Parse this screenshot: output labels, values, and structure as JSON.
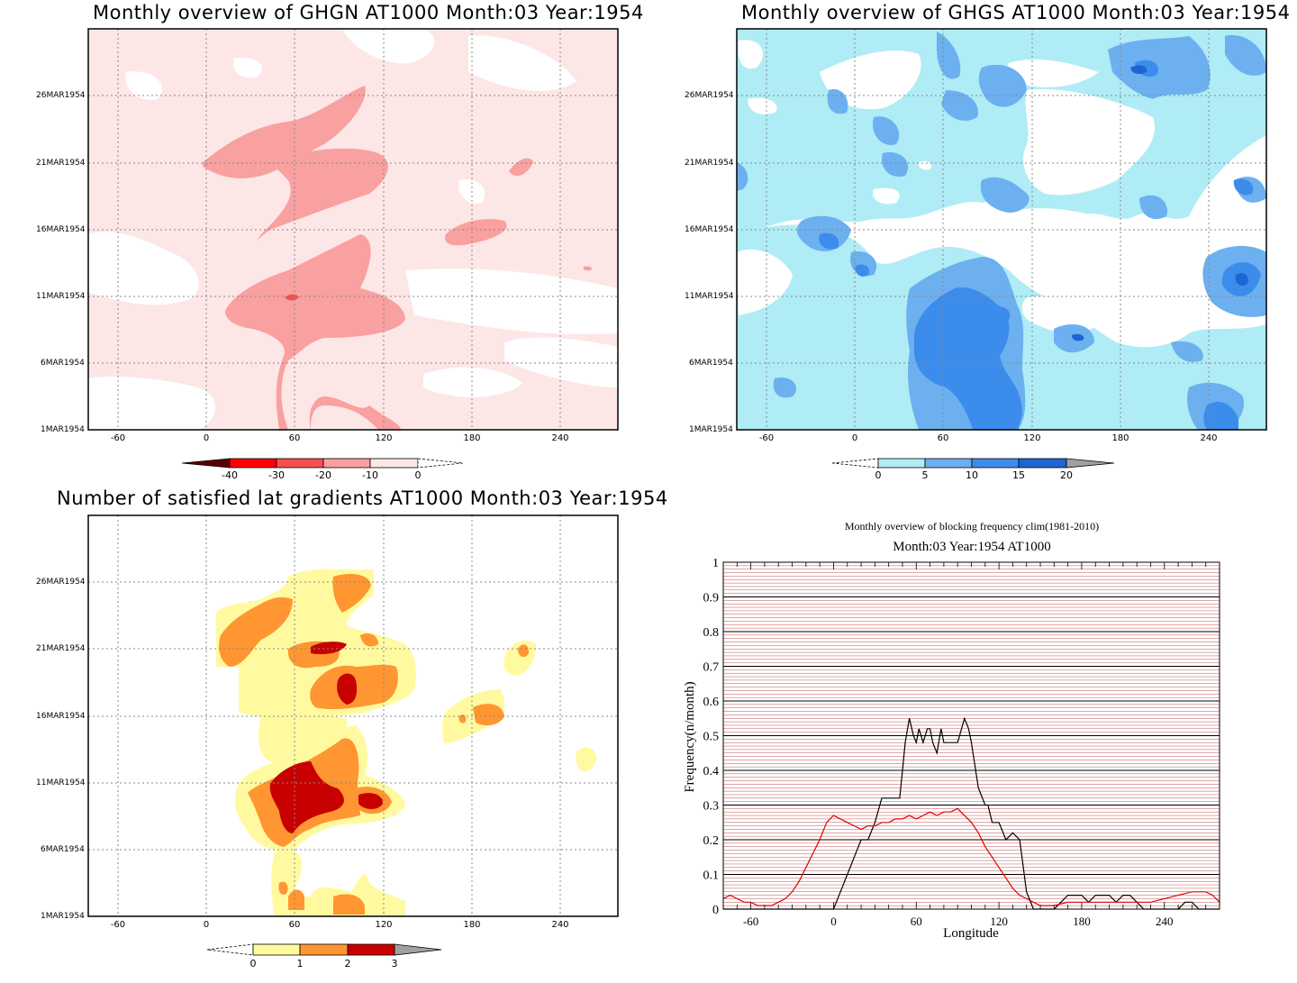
{
  "panels": {
    "ghgn": {
      "title": "Monthly overview of GHGN AT1000 Month:03 Year:1954",
      "colorbar_ticks": [
        "-40",
        "-30",
        "-20",
        "-10",
        "0"
      ],
      "colors": [
        "#5a0000",
        "#ff0000",
        "#f45050",
        "#f9a0a0",
        "#fde6e6",
        "#ffffff"
      ]
    },
    "ghgs": {
      "title": "Monthly overview of GHGS AT1000 Month:03 Year:1954",
      "colorbar_ticks": [
        "0",
        "5",
        "10",
        "15",
        "20"
      ],
      "colors": [
        "#ffffff",
        "#b0ecf5",
        "#6cb0f0",
        "#3c8cec",
        "#1e64d2",
        "#a0a0a0"
      ]
    },
    "lat": {
      "title": "Number of satisfied lat gradients AT1000 Month:03 Year:1954",
      "colorbar_ticks": [
        "0",
        "1",
        "2",
        "3"
      ],
      "colors": [
        "#ffffff",
        "#fffaa0",
        "#ff9632",
        "#c80000",
        "#a0a0a0"
      ]
    }
  },
  "date_ticks": [
    "26MAR1954",
    "21MAR1954",
    "16MAR1954",
    "11MAR1954",
    "6MAR1954",
    "1MAR1954"
  ],
  "lon_ticks": [
    "-60",
    "0",
    "60",
    "120",
    "180",
    "240"
  ],
  "chart_data": [
    {
      "type": "heatmap",
      "title": "Monthly overview of GHGN AT1000 Month:03 Year:1954",
      "x_ticks": [
        -60,
        0,
        60,
        120,
        180,
        240
      ],
      "y_ticks": [
        "1MAR1954",
        "6MAR1954",
        "11MAR1954",
        "16MAR1954",
        "21MAR1954",
        "26MAR1954"
      ],
      "levels": [
        -40,
        -30,
        -20,
        -10,
        0
      ],
      "note_regions": [
        {
          "lon": [
            20,
            115
          ],
          "date_start": "1MAR1954",
          "date_end": "23MAR1954",
          "level": -10
        },
        {
          "lon": [
            55,
            60
          ],
          "date_start": "11MAR1954",
          "date_end": "11MAR1954",
          "level": -20
        }
      ]
    },
    {
      "type": "heatmap",
      "title": "Monthly overview of GHGS AT1000 Month:03 Year:1954",
      "x_ticks": [
        -60,
        0,
        60,
        120,
        180,
        240
      ],
      "y_ticks": [
        "1MAR1954",
        "6MAR1954",
        "11MAR1954",
        "16MAR1954",
        "21MAR1954",
        "26MAR1954"
      ],
      "levels": [
        0,
        5,
        10,
        15,
        20
      ]
    },
    {
      "type": "heatmap",
      "title": "Number of satisfied lat gradients AT1000 Month:03 Year:1954",
      "x_ticks": [
        -60,
        0,
        60,
        120,
        180,
        240
      ],
      "y_ticks": [
        "1MAR1954",
        "6MAR1954",
        "11MAR1954",
        "16MAR1954",
        "21MAR1954",
        "26MAR1954"
      ],
      "levels": [
        0,
        1,
        2,
        3
      ]
    },
    {
      "type": "line",
      "title": "Monthly overview of blocking frequency clim(1981-2010)",
      "subtitle": "Month:03 Year:1954  AT1000",
      "xlabel": "Longitude",
      "ylabel": "Frequency(n/month)",
      "xlim": [
        -80,
        280
      ],
      "ylim": [
        0,
        1
      ],
      "x_ticks": [
        -60,
        0,
        60,
        120,
        180,
        240
      ],
      "y_ticks": [
        0,
        0.1,
        0.2,
        0.3,
        0.4,
        0.5,
        0.6,
        0.7,
        0.8,
        0.9,
        1
      ],
      "series": [
        {
          "color": "#000000",
          "x": [
            -80,
            0,
            5,
            10,
            15,
            20,
            25,
            30,
            35,
            40,
            45,
            48,
            50,
            52,
            55,
            58,
            60,
            62,
            65,
            68,
            70,
            72,
            75,
            78,
            80,
            82,
            85,
            90,
            95,
            98,
            100,
            105,
            110,
            112,
            115,
            118,
            120,
            125,
            130,
            135,
            140,
            145,
            150,
            160,
            165,
            170,
            175,
            180,
            185,
            190,
            195,
            200,
            205,
            210,
            215,
            220,
            225,
            250,
            255,
            260,
            265,
            280
          ],
          "y": [
            0,
            0,
            0.05,
            0.1,
            0.15,
            0.2,
            0.2,
            0.25,
            0.32,
            0.32,
            0.32,
            0.32,
            0.4,
            0.48,
            0.55,
            0.5,
            0.48,
            0.52,
            0.48,
            0.52,
            0.52,
            0.48,
            0.45,
            0.52,
            0.48,
            0.48,
            0.48,
            0.48,
            0.55,
            0.52,
            0.48,
            0.35,
            0.3,
            0.3,
            0.25,
            0.25,
            0.25,
            0.2,
            0.22,
            0.2,
            0.05,
            0,
            0,
            0,
            0.02,
            0.04,
            0.04,
            0.04,
            0.02,
            0.04,
            0.04,
            0.04,
            0.02,
            0.04,
            0.04,
            0.02,
            0,
            0,
            0.02,
            0.02,
            0,
            0
          ]
        },
        {
          "color": "#e00000",
          "x": [
            -80,
            -75,
            -70,
            -65,
            -60,
            -55,
            -50,
            -45,
            -40,
            -35,
            -30,
            -25,
            -20,
            -15,
            -10,
            -5,
            0,
            5,
            10,
            15,
            20,
            25,
            30,
            35,
            40,
            45,
            50,
            55,
            60,
            65,
            70,
            75,
            80,
            85,
            90,
            95,
            100,
            105,
            110,
            115,
            120,
            125,
            130,
            135,
            140,
            145,
            150,
            160,
            170,
            180,
            190,
            200,
            210,
            220,
            230,
            240,
            250,
            260,
            270,
            275,
            280
          ],
          "y": [
            0.03,
            0.04,
            0.03,
            0.02,
            0.02,
            0.01,
            0.01,
            0.01,
            0.02,
            0.03,
            0.05,
            0.08,
            0.12,
            0.16,
            0.2,
            0.25,
            0.27,
            0.26,
            0.25,
            0.24,
            0.23,
            0.24,
            0.24,
            0.25,
            0.25,
            0.26,
            0.26,
            0.27,
            0.26,
            0.27,
            0.28,
            0.27,
            0.28,
            0.28,
            0.29,
            0.27,
            0.25,
            0.22,
            0.18,
            0.15,
            0.12,
            0.09,
            0.06,
            0.04,
            0.03,
            0.02,
            0.01,
            0.01,
            0.02,
            0.02,
            0.02,
            0.02,
            0.02,
            0.02,
            0.02,
            0.03,
            0.04,
            0.05,
            0.05,
            0.04,
            0.02
          ]
        }
      ]
    }
  ]
}
